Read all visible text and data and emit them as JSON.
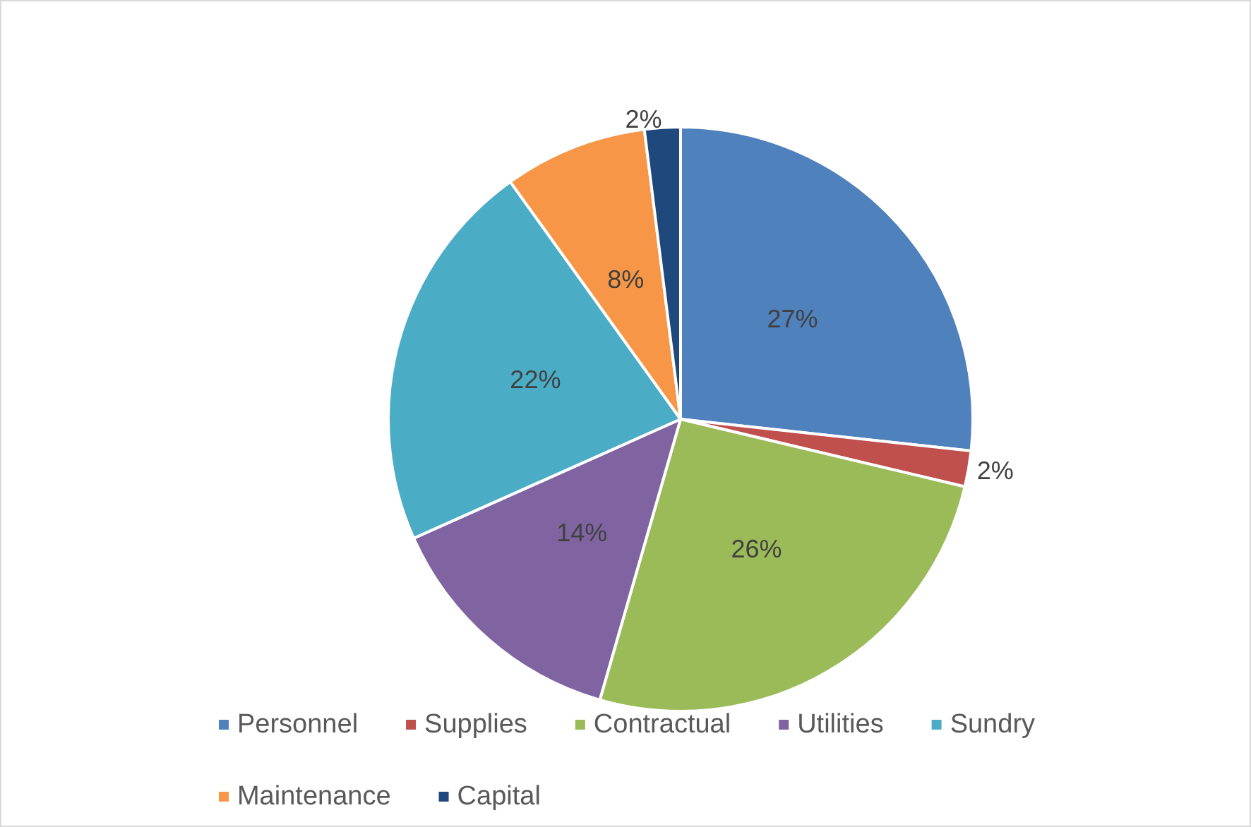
{
  "chart_data": {
    "type": "pie",
    "categories": [
      "Personnel",
      "Supplies",
      "Contractual",
      "Utilities",
      "Sundry",
      "Maintenance",
      "Capital"
    ],
    "values": [
      27,
      2,
      26,
      14,
      22,
      8,
      2
    ],
    "value_labels": [
      "27%",
      "2%",
      "26%",
      "14%",
      "22%",
      "8%",
      "2%"
    ],
    "colors": [
      "#4f81bd",
      "#c0504d",
      "#9bbb59",
      "#8064a2",
      "#4bacc6",
      "#f79646",
      "#1f497d"
    ],
    "legend": "bottom"
  }
}
